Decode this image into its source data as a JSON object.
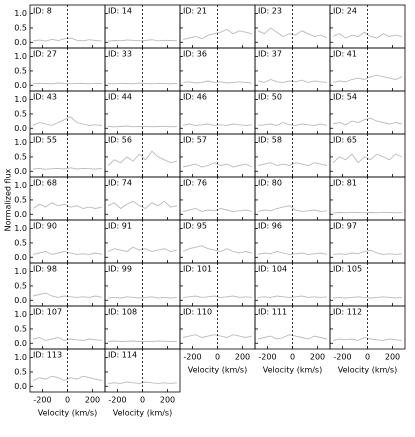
{
  "chart_data": {
    "type": "small-multiples-line",
    "xlabel": "Velocity (km/s)",
    "ylabel": "Normalized flux",
    "xlim": [
      -300,
      300
    ],
    "ylim": [
      -0.2,
      1.3
    ],
    "xticks": [
      -200,
      0,
      200
    ],
    "yticks": [
      {
        "value": 0,
        "label": "0.0"
      },
      {
        "value": 0.5,
        "label": "0.5"
      },
      {
        "value": 1,
        "label": "1.0"
      }
    ],
    "color": "#bbbbbb",
    "x": [
      -275,
      -225,
      -175,
      -125,
      -75,
      -25,
      25,
      75,
      125,
      175,
      225,
      275
    ],
    "panels": [
      {
        "title": "ID: 8",
        "values": [
          0.05,
          0.08,
          0.04,
          0.1,
          0.06,
          0.12,
          0.15,
          0.07,
          0.05,
          0.09,
          0.06,
          0.04
        ]
      },
      {
        "title": "ID: 14",
        "values": [
          0.04,
          0.06,
          0.05,
          0.08,
          0.07,
          0.05,
          0.06,
          0.09,
          0.05,
          0.07,
          0.06,
          0.05
        ]
      },
      {
        "title": "ID: 21",
        "values": [
          0.1,
          0.15,
          0.2,
          0.12,
          0.25,
          0.3,
          0.35,
          0.45,
          0.3,
          0.4,
          0.35,
          0.3
        ]
      },
      {
        "title": "ID: 23",
        "values": [
          0.4,
          0.3,
          0.5,
          0.35,
          0.2,
          0.3,
          0.25,
          0.4,
          0.3,
          0.2,
          0.25,
          0.15
        ]
      },
      {
        "title": "ID: 24",
        "values": [
          0.2,
          0.3,
          0.15,
          0.25,
          0.2,
          0.35,
          0.2,
          0.15,
          0.3,
          0.2,
          0.25,
          0.2
        ]
      },
      {
        "title": "ID: 27",
        "values": [
          0.05,
          0.07,
          0.06,
          0.05,
          0.08,
          0.06,
          0.05,
          0.07,
          0.06,
          0.05,
          0.07,
          0.06
        ]
      },
      {
        "title": "ID: 33",
        "values": [
          0.06,
          0.05,
          0.07,
          0.06,
          0.05,
          0.08,
          0.06,
          0.05,
          0.07,
          0.06,
          0.05,
          0.06
        ]
      },
      {
        "title": "ID: 36",
        "values": [
          0.1,
          0.12,
          0.08,
          0.1,
          0.15,
          0.1,
          0.12,
          0.08,
          0.1,
          0.12,
          0.1,
          0.08
        ]
      },
      {
        "title": "ID: 37",
        "values": [
          0.15,
          0.1,
          0.2,
          0.12,
          0.1,
          0.15,
          0.12,
          0.18,
          0.1,
          0.15,
          0.12,
          0.1
        ]
      },
      {
        "title": "ID: 41",
        "values": [
          0.1,
          0.15,
          0.12,
          0.2,
          0.25,
          0.2,
          0.3,
          0.35,
          0.3,
          0.25,
          0.2,
          0.3
        ]
      },
      {
        "title": "ID: 43",
        "values": [
          0.1,
          0.2,
          0.15,
          0.1,
          0.2,
          0.3,
          0.4,
          0.2,
          0.15,
          0.1,
          0.12,
          0.1
        ]
      },
      {
        "title": "ID: 44",
        "values": [
          0.06,
          0.05,
          0.06,
          0.08,
          0.05,
          0.06,
          0.07,
          0.05,
          0.06,
          0.07,
          0.05,
          0.06
        ]
      },
      {
        "title": "ID: 46",
        "values": [
          0.1,
          0.15,
          0.1,
          0.12,
          0.15,
          0.1,
          0.12,
          0.1,
          0.15,
          0.12,
          0.1,
          0.12
        ]
      },
      {
        "title": "ID: 50",
        "values": [
          0.1,
          0.12,
          0.15,
          0.1,
          0.2,
          0.12,
          0.1,
          0.15,
          0.12,
          0.1,
          0.15,
          0.1
        ]
      },
      {
        "title": "ID: 54",
        "values": [
          0.15,
          0.2,
          0.12,
          0.25,
          0.2,
          0.3,
          0.35,
          0.25,
          0.2,
          0.15,
          0.2,
          0.15
        ]
      },
      {
        "title": "ID: 55",
        "values": [
          0.08,
          0.1,
          0.07,
          0.09,
          0.1,
          0.08,
          0.12,
          0.08,
          0.1,
          0.09,
          0.08,
          0.1
        ]
      },
      {
        "title": "ID: 56",
        "values": [
          0.2,
          0.4,
          0.3,
          0.5,
          0.35,
          0.6,
          0.4,
          0.7,
          0.5,
          0.4,
          0.3,
          0.35
        ]
      },
      {
        "title": "ID: 57",
        "values": [
          0.15,
          0.2,
          0.25,
          0.15,
          0.2,
          0.3,
          0.2,
          0.25,
          0.15,
          0.2,
          0.25,
          0.15
        ]
      },
      {
        "title": "ID: 58",
        "values": [
          0.2,
          0.25,
          0.3,
          0.2,
          0.25,
          0.2,
          0.3,
          0.25,
          0.2,
          0.3,
          0.25,
          0.2
        ]
      },
      {
        "title": "ID: 65",
        "values": [
          0.3,
          0.5,
          0.4,
          0.6,
          0.3,
          0.5,
          0.4,
          0.6,
          0.5,
          0.4,
          0.6,
          0.5
        ]
      },
      {
        "title": "ID: 68",
        "values": [
          0.2,
          0.35,
          0.25,
          0.4,
          0.3,
          0.35,
          0.25,
          0.3,
          0.2,
          0.25,
          0.2,
          0.25
        ]
      },
      {
        "title": "ID: 74",
        "values": [
          0.3,
          0.4,
          0.2,
          0.35,
          0.45,
          0.3,
          0.2,
          0.4,
          0.3,
          0.45,
          0.25,
          0.3
        ]
      },
      {
        "title": "ID: 76",
        "values": [
          0.1,
          0.15,
          0.2,
          0.1,
          0.15,
          0.12,
          0.2,
          0.15,
          0.1,
          0.12,
          0.15,
          0.1
        ]
      },
      {
        "title": "ID: 80",
        "values": [
          0.1,
          0.15,
          0.12,
          0.2,
          0.25,
          0.3,
          0.15,
          0.1,
          0.12,
          0.15,
          0.1,
          0.12
        ]
      },
      {
        "title": "ID: 81",
        "values": [
          0.05,
          0.06,
          0.05,
          0.07,
          0.06,
          0.05,
          0.06,
          0.05,
          0.07,
          0.06,
          0.05,
          0.06
        ]
      },
      {
        "title": "ID: 90",
        "values": [
          0.1,
          0.15,
          0.2,
          0.1,
          0.15,
          0.2,
          0.15,
          0.1,
          0.12,
          0.1,
          0.15,
          0.1
        ]
      },
      {
        "title": "ID: 91",
        "values": [
          0.2,
          0.3,
          0.25,
          0.2,
          0.35,
          0.25,
          0.3,
          0.2,
          0.25,
          0.3,
          0.2,
          0.25
        ]
      },
      {
        "title": "ID: 95",
        "values": [
          0.2,
          0.3,
          0.35,
          0.4,
          0.3,
          0.25,
          0.2,
          0.3,
          0.2,
          0.15,
          0.2,
          0.15
        ]
      },
      {
        "title": "ID: 96",
        "values": [
          0.1,
          0.15,
          0.12,
          0.2,
          0.15,
          0.1,
          0.12,
          0.15,
          0.1,
          0.12,
          0.15,
          0.1
        ]
      },
      {
        "title": "ID: 97",
        "values": [
          0.1,
          0.12,
          0.1,
          0.15,
          0.12,
          0.2,
          0.25,
          0.15,
          0.1,
          0.12,
          0.1,
          0.12
        ]
      },
      {
        "title": "ID: 98",
        "values": [
          0.15,
          0.2,
          0.25,
          0.15,
          0.1,
          0.15,
          0.12,
          0.1,
          0.12,
          0.1,
          0.15,
          0.1
        ]
      },
      {
        "title": "ID: 99",
        "values": [
          0.08,
          0.1,
          0.08,
          0.12,
          0.1,
          0.08,
          0.1,
          0.12,
          0.08,
          0.1,
          0.08,
          0.1
        ]
      },
      {
        "title": "ID: 101",
        "values": [
          0.1,
          0.12,
          0.15,
          0.1,
          0.12,
          0.15,
          0.1,
          0.12,
          0.15,
          0.1,
          0.12,
          0.1
        ]
      },
      {
        "title": "ID: 104",
        "values": [
          0.1,
          0.12,
          0.1,
          0.15,
          0.12,
          0.1,
          0.12,
          0.15,
          0.1,
          0.12,
          0.1,
          0.12
        ]
      },
      {
        "title": "ID: 105",
        "values": [
          0.08,
          0.1,
          0.08,
          0.1,
          0.12,
          0.1,
          0.08,
          0.1,
          0.12,
          0.1,
          0.08,
          0.1
        ]
      },
      {
        "title": "ID: 107",
        "values": [
          0.15,
          0.2,
          0.1,
          0.15,
          0.2,
          0.1,
          0.15,
          0.12,
          0.1,
          0.15,
          0.12,
          0.1
        ]
      },
      {
        "title": "ID: 108",
        "values": [
          0.06,
          0.08,
          0.06,
          0.07,
          0.08,
          0.06,
          0.07,
          0.06,
          0.08,
          0.07,
          0.06,
          0.07
        ]
      },
      {
        "title": "ID: 110",
        "values": [
          0.2,
          0.25,
          0.3,
          0.2,
          0.25,
          0.3,
          0.25,
          0.2,
          0.3,
          0.25,
          0.2,
          0.25
        ]
      },
      {
        "title": "ID: 111",
        "values": [
          0.15,
          0.2,
          0.25,
          0.15,
          0.2,
          0.3,
          0.25,
          0.2,
          0.15,
          0.25,
          0.2,
          0.15
        ]
      },
      {
        "title": "ID: 112",
        "values": [
          0.1,
          0.15,
          0.12,
          0.15,
          0.1,
          0.2,
          0.15,
          0.12,
          0.1,
          0.15,
          0.12,
          0.1
        ]
      },
      {
        "title": "ID: 113",
        "values": [
          0.2,
          0.3,
          0.25,
          0.35,
          0.3,
          0.2,
          0.3,
          0.25,
          0.35,
          0.3,
          0.25,
          0.2
        ]
      },
      {
        "title": "ID: 114",
        "values": [
          0.1,
          0.12,
          0.1,
          0.15,
          0.12,
          0.1,
          0.15,
          0.12,
          0.1,
          0.12,
          0.1,
          0.12
        ]
      }
    ]
  }
}
